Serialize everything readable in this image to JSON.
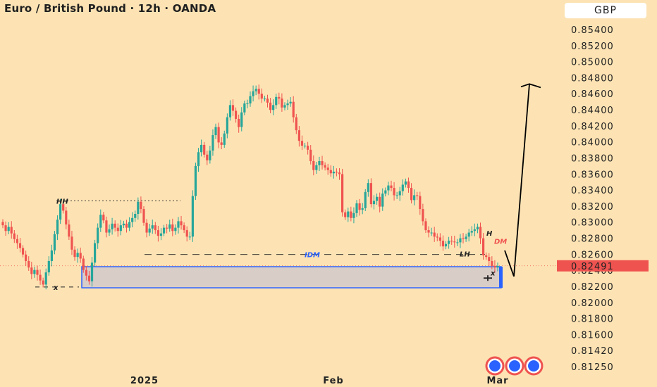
{
  "header": {
    "title": "Euro / British Pound · 12h · OANDA",
    "currency": "GBP"
  },
  "chart_data": {
    "type": "candlestick",
    "symbol": "EUR/GBP",
    "timeframe": "12h",
    "source": "OANDA",
    "ylim": [
      0.8116,
      0.855
    ],
    "y_ticks": [
      "0.85400",
      "0.85200",
      "0.85000",
      "0.84800",
      "0.84600",
      "0.84400",
      "0.84200",
      "0.84000",
      "0.83800",
      "0.83600",
      "0.83400",
      "0.83200",
      "0.83000",
      "0.82800",
      "0.82600",
      "0.82400",
      "0.82200",
      "0.82000",
      "0.81800",
      "0.81600",
      "0.81420",
      "0.81250"
    ],
    "x_ticks": [
      "2025",
      "Feb",
      "Mar"
    ],
    "current_price": "0.82491",
    "current_price_value": 0.82491,
    "colors": {
      "up": "#26a69a",
      "down": "#ef5350",
      "background": "#fde3b4",
      "demand_zone_fill": "#d9cdc8",
      "demand_zone_border": "#2962ff",
      "price_label": "#ef5350"
    },
    "levels": {
      "hh": 0.8329,
      "idm": 0.8263,
      "zone_top": 0.8248,
      "zone_bottom": 0.8222,
      "low_x": 0.8223
    },
    "annotations": {
      "hh": "HH",
      "idm": "IDM",
      "lh": "LH",
      "h": "H",
      "dm": "DM",
      "x_low": "x",
      "x_recent": "x"
    },
    "projection": {
      "low": 0.8236,
      "high": 0.8473
    },
    "closes": [
      0.8299,
      0.8292,
      0.8297,
      0.8289,
      0.8282,
      0.8277,
      0.8271,
      0.8263,
      0.8255,
      0.8247,
      0.8239,
      0.8244,
      0.8238,
      0.8231,
      0.8226,
      0.8241,
      0.8255,
      0.8268,
      0.8288,
      0.8306,
      0.8325,
      0.8317,
      0.83,
      0.8285,
      0.8269,
      0.826,
      0.8265,
      0.8258,
      0.8244,
      0.8237,
      0.823,
      0.8253,
      0.8277,
      0.8296,
      0.8312,
      0.8305,
      0.829,
      0.8294,
      0.8301,
      0.8296,
      0.8292,
      0.8299,
      0.8301,
      0.8296,
      0.8303,
      0.8308,
      0.8313,
      0.8328,
      0.8319,
      0.8302,
      0.829,
      0.8295,
      0.8299,
      0.8293,
      0.8286,
      0.8289,
      0.8296,
      0.8295,
      0.83,
      0.8292,
      0.8296,
      0.8304,
      0.8299,
      0.8293,
      0.8285,
      0.8285,
      0.8335,
      0.8372,
      0.8389,
      0.8398,
      0.8386,
      0.8379,
      0.8391,
      0.841,
      0.842,
      0.8401,
      0.8398,
      0.8412,
      0.8432,
      0.8447,
      0.844,
      0.843,
      0.842,
      0.8438,
      0.8449,
      0.8449,
      0.8458,
      0.8464,
      0.8467,
      0.8461,
      0.8455,
      0.8455,
      0.845,
      0.8441,
      0.8447,
      0.8457,
      0.8455,
      0.8444,
      0.8447,
      0.8449,
      0.8451,
      0.8432,
      0.8416,
      0.8403,
      0.8397,
      0.8397,
      0.8392,
      0.8378,
      0.8367,
      0.8373,
      0.8378,
      0.8373,
      0.837,
      0.8367,
      0.8363,
      0.8365,
      0.8364,
      0.8362,
      0.8315,
      0.8309,
      0.8316,
      0.8308,
      0.8314,
      0.8326,
      0.8318,
      0.832,
      0.834,
      0.8351,
      0.8325,
      0.8329,
      0.8334,
      0.8322,
      0.8338,
      0.8342,
      0.8348,
      0.8345,
      0.8336,
      0.8336,
      0.8341,
      0.8349,
      0.8353,
      0.8345,
      0.833,
      0.8336,
      0.8335,
      0.8319,
      0.8304,
      0.8293,
      0.829,
      0.829,
      0.8285,
      0.8284,
      0.828,
      0.8273,
      0.8276,
      0.828,
      0.8279,
      0.8278,
      0.8278,
      0.8283,
      0.8282,
      0.8285,
      0.829,
      0.8292,
      0.8294,
      0.8297,
      0.8283,
      0.8262,
      0.826,
      0.8255,
      0.8249,
      0.8247,
      0.8249
    ]
  }
}
